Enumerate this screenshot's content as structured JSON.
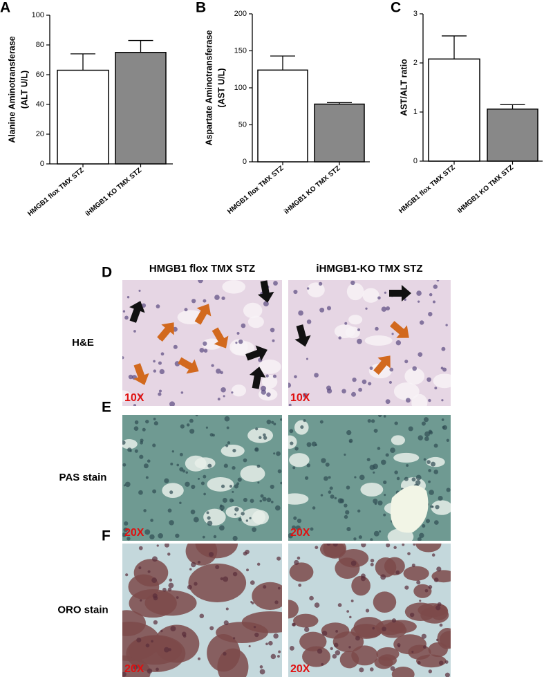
{
  "chart_data": [
    {
      "type": "bar",
      "panel": "A",
      "ylabel": [
        "Alanine Aminotransferase",
        "(ALT U/L)"
      ],
      "categories": [
        "HMGB1 flox TMX STZ",
        "iHMGB1 KO TMX STZ"
      ],
      "values": [
        63,
        75
      ],
      "errors": [
        11,
        8
      ],
      "colors": [
        "#ffffff",
        "#888888"
      ],
      "ylim": [
        0,
        100
      ],
      "yticks": [
        0,
        20,
        40,
        60,
        80,
        100
      ]
    },
    {
      "type": "bar",
      "panel": "B",
      "ylabel": [
        "Aspartate Aminotransferase",
        "(AST U/L)"
      ],
      "categories": [
        "HMGB1 flox TMX STZ",
        "iHMGB1 KO TMX STZ"
      ],
      "values": [
        124,
        78
      ],
      "errors": [
        19,
        2
      ],
      "colors": [
        "#ffffff",
        "#888888"
      ],
      "ylim": [
        0,
        200
      ],
      "yticks": [
        0,
        50,
        100,
        150,
        200
      ]
    },
    {
      "type": "bar",
      "panel": "C",
      "ylabel": [
        "AST/ALT ratio"
      ],
      "categories": [
        "HMGB1 flox TMX STZ",
        "iHMGB1 KO TMX STZ"
      ],
      "values": [
        2.08,
        1.06
      ],
      "errors": [
        0.47,
        0.09
      ],
      "colors": [
        "#ffffff",
        "#888888"
      ],
      "ylim": [
        0,
        3
      ],
      "yticks": [
        0,
        1,
        2,
        3
      ]
    }
  ],
  "micrographs": {
    "columns": [
      "HMGB1 flox TMX STZ",
      "iHMGB1-KO TMX STZ"
    ],
    "rows": [
      {
        "panel": "D",
        "label": "H&E",
        "magnifications": [
          "10X",
          "10X"
        ]
      },
      {
        "panel": "E",
        "label": "PAS stain",
        "magnifications": [
          "20X",
          "20X"
        ]
      },
      {
        "panel": "F",
        "label": "ORO stain",
        "magnifications": [
          "20X",
          "20X"
        ]
      }
    ]
  }
}
